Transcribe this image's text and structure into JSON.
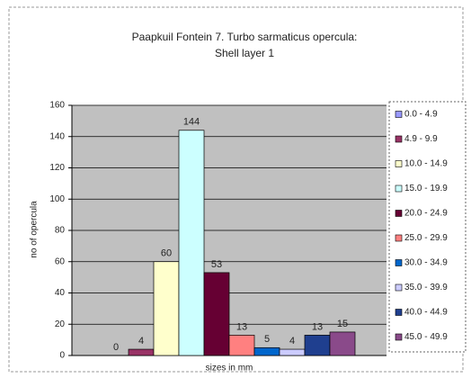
{
  "chart_data": {
    "type": "bar",
    "title": "Paapkuil Fontein 7. Turbo sarmaticus opercula:",
    "subtitle": "Shell layer 1",
    "xlabel": "sizes in mm",
    "ylabel": "no of opercula",
    "ylim": [
      0,
      160
    ],
    "yticks": [
      0,
      20,
      40,
      60,
      80,
      100,
      120,
      140,
      160
    ],
    "grid": true,
    "legend": "right",
    "series": [
      {
        "name": "0.0 - 4.9",
        "color": "#9999ff",
        "values": [
          0
        ]
      },
      {
        "name": "4.9 - 9.9",
        "color": "#993366",
        "values": [
          4
        ]
      },
      {
        "name": "10.0 - 14.9",
        "color": "#ffffcc",
        "values": [
          60
        ]
      },
      {
        "name": "15.0 - 19.9",
        "color": "#ccffff",
        "values": [
          144
        ]
      },
      {
        "name": "20.0 - 24.9",
        "color": "#660033",
        "values": [
          53
        ]
      },
      {
        "name": "25.0 - 29.9",
        "color": "#ff8080",
        "values": [
          13
        ]
      },
      {
        "name": "30.0 - 34.9",
        "color": "#0066cc",
        "values": [
          5
        ]
      },
      {
        "name": "35.0 - 39.9",
        "color": "#ccccff",
        "values": [
          4
        ]
      },
      {
        "name": "40.0 - 44.9",
        "color": "#1f3f8f",
        "values": [
          13
        ]
      },
      {
        "name": "45.0 - 49.9",
        "color": "#8a4a8a",
        "values": [
          15
        ]
      }
    ]
  }
}
